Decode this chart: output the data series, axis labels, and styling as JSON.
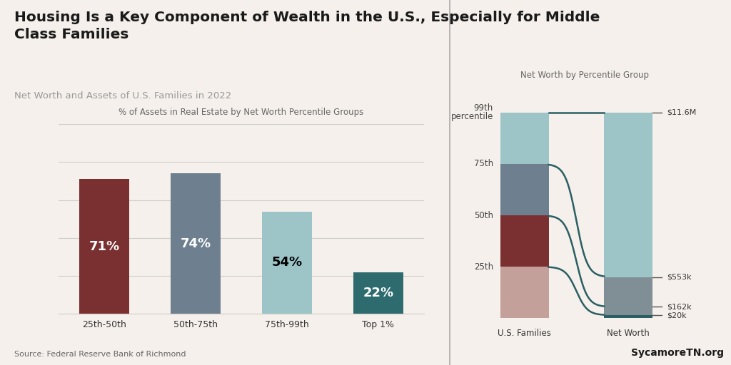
{
  "title": "Housing Is a Key Component of Wealth in the U.S., Especially for Middle\nClass Families",
  "subtitle": "Net Worth and Assets of U.S. Families in 2022",
  "bg_color": "#f5f0eb",
  "left_subtitle": "% of Assets in Real Estate by Net Worth Percentile Groups",
  "right_subtitle": "Net Worth by Percentile Group",
  "bar_categories": [
    "25th-50th",
    "50th-75th",
    "75th-99th",
    "Top 1%"
  ],
  "bar_values": [
    71,
    74,
    54,
    22
  ],
  "bar_colors": [
    "#7a3030",
    "#6e8090",
    "#9dc5c8",
    "#2e6b6e"
  ],
  "bar_label_colors": [
    "white",
    "white",
    "black",
    "white"
  ],
  "source": "Source: Federal Reserve Bank of Richmond",
  "watermark": "SycamoreTN.org",
  "segment_colors": [
    "#c4a09a",
    "#7a3030",
    "#6e8090",
    "#9dc5c8"
  ],
  "net_worth_labels": [
    "$20k",
    "$162k",
    "$553k",
    "$11.6M"
  ],
  "divider_color": "#aaaaaa",
  "ymax": 100,
  "yticks": [
    20,
    40,
    60,
    80,
    100
  ]
}
